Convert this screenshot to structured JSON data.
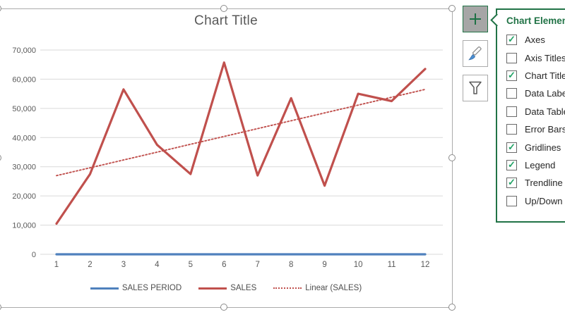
{
  "chart_data": {
    "type": "line",
    "title": "Chart Title",
    "x": [
      "1",
      "2",
      "3",
      "4",
      "5",
      "6",
      "7",
      "8",
      "9",
      "10",
      "11",
      "12"
    ],
    "series": [
      {
        "name": "SALES PERIOD",
        "color": "#4F81BD",
        "style": "solid",
        "values": [
          1,
          2,
          3,
          4,
          5,
          6,
          7,
          8,
          9,
          10,
          11,
          12
        ]
      },
      {
        "name": "SALES",
        "color": "#C0504D",
        "style": "solid",
        "values": [
          10500,
          27500,
          56500,
          37500,
          27500,
          65700,
          27000,
          53500,
          23500,
          55000,
          52500,
          63500
        ]
      },
      {
        "name": "Linear (SALES)",
        "color": "#C0504D",
        "style": "dotted",
        "trend_of": "SALES",
        "values": [
          26950,
          29640,
          32320,
          35010,
          37700,
          40380,
          43070,
          45760,
          48440,
          51130,
          53810,
          56500
        ]
      }
    ],
    "ylim": [
      0,
      70000
    ],
    "ytick_interval": 10000,
    "ytick_labels": [
      "0",
      "10,000",
      "20,000",
      "30,000",
      "40,000",
      "50,000",
      "60,000",
      "70,000"
    ],
    "xlabel": "",
    "ylabel": "",
    "gridlines": true,
    "legend_position": "bottom"
  },
  "panel": {
    "title": "Chart Elements",
    "items": [
      {
        "label": "Axes",
        "checked": true
      },
      {
        "label": "Axis Titles",
        "checked": false
      },
      {
        "label": "Chart Title",
        "checked": true
      },
      {
        "label": "Data Labels",
        "checked": false
      },
      {
        "label": "Data Table",
        "checked": false
      },
      {
        "label": "Error Bars",
        "checked": false
      },
      {
        "label": "Gridlines",
        "checked": true
      },
      {
        "label": "Legend",
        "checked": true
      },
      {
        "label": "Trendline",
        "checked": true
      },
      {
        "label": "Up/Down Bars",
        "checked": false
      }
    ]
  },
  "side_buttons": [
    {
      "label": "Chart Elements",
      "icon": "plus-icon",
      "selected": true
    },
    {
      "label": "Chart Styles",
      "icon": "brush-icon",
      "selected": false
    },
    {
      "label": "Chart Filters",
      "icon": "funnel-icon",
      "selected": false
    }
  ],
  "colors": {
    "series_blue": "#4F81BD",
    "series_red": "#C0504D",
    "panel_green": "#217346",
    "check_green": "#21A366",
    "gridline": "#D9D9D9",
    "axis_text": "#595959",
    "selection": "#ababab"
  }
}
